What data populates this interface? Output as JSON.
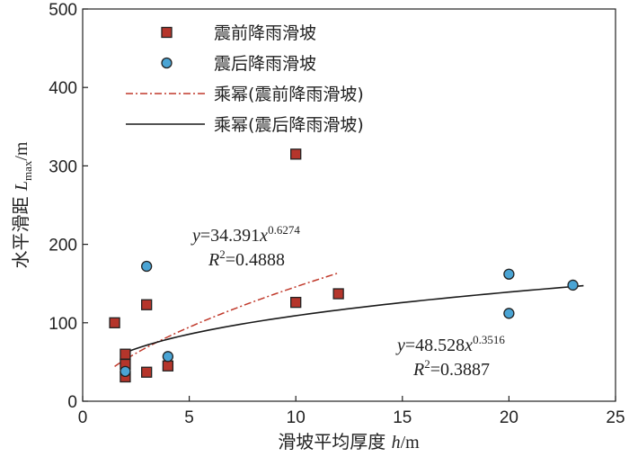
{
  "chart_data": {
    "type": "scatter",
    "xlabel": "滑坡平均厚度 h/m",
    "ylabel": "水平滑距 Lmax/m",
    "xlabel_parts": {
      "main": "滑坡平均厚度 ",
      "var": "h",
      "unit": "/m"
    },
    "ylabel_parts": {
      "main": "水平滑距 ",
      "var": "L",
      "sub": "max",
      "unit": "/m"
    },
    "xlim": [
      0,
      25
    ],
    "ylim": [
      0,
      500
    ],
    "xticks": [
      "0",
      "5",
      "10",
      "15",
      "20",
      "25"
    ],
    "yticks": [
      "0",
      "100",
      "200",
      "300",
      "400",
      "500"
    ],
    "xticks_values": [
      0,
      5,
      10,
      15,
      20,
      25
    ],
    "yticks_values": [
      0,
      100,
      200,
      300,
      400,
      500
    ],
    "grid": false,
    "legend_position": "top-left",
    "series": [
      {
        "name": "震前降雨滑坡",
        "marker": "square",
        "color": "#b5352b",
        "points": [
          [
            1.5,
            100
          ],
          [
            2.0,
            60
          ],
          [
            2.0,
            47
          ],
          [
            2.0,
            31
          ],
          [
            3.0,
            123
          ],
          [
            3.0,
            37
          ],
          [
            4.0,
            45
          ],
          [
            10.0,
            126
          ],
          [
            10.0,
            315
          ],
          [
            12.0,
            137
          ]
        ]
      },
      {
        "name": "震后降雨滑坡",
        "marker": "circle",
        "color": "#4aa4d4",
        "points": [
          [
            2.0,
            38
          ],
          [
            3.0,
            172
          ],
          [
            4.0,
            57
          ],
          [
            20.0,
            162
          ],
          [
            20.0,
            112
          ],
          [
            23.0,
            148
          ]
        ]
      }
    ],
    "fits": [
      {
        "name": "乘幂(震前降雨滑坡)",
        "style": "dash-dot",
        "color": "#c0392b",
        "a": 34.391,
        "b": 0.6274,
        "x_range": [
          1.5,
          12
        ],
        "eq_coef": "=34.391",
        "eq_exp": "0.6274",
        "r2_value": "=0.4888"
      },
      {
        "name": "乘幂(震后降雨滑坡)",
        "style": "solid",
        "color": "#1a1a1a",
        "a": 48.528,
        "b": 0.3516,
        "x_range": [
          2,
          23.5
        ],
        "eq_coef": "=48.528",
        "eq_exp": "0.3516",
        "r2_value": "=0.3887"
      }
    ]
  }
}
